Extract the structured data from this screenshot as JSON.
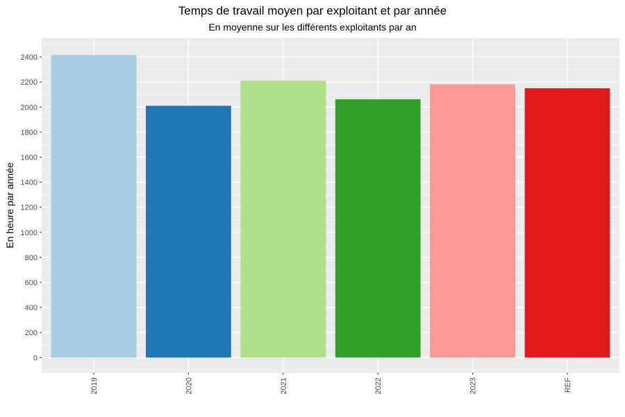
{
  "chart_data": {
    "type": "bar",
    "title": "Temps de travail moyen par exploitant et par année",
    "subtitle": "En moyenne sur les différents exploitants par an",
    "xlabel": "",
    "ylabel": "En heure par année",
    "categories": [
      "2019",
      "2020",
      "2021",
      "2022",
      "2023",
      "REF"
    ],
    "values": [
      2415,
      2010,
      2210,
      2062,
      2182,
      2150
    ],
    "colors": [
      "#a6cee3",
      "#1f78b4",
      "#b2df8a",
      "#33a02c",
      "#fb9a99",
      "#e31a1c"
    ],
    "ylim": [
      -120,
      2550
    ],
    "yticks": [
      0,
      200,
      400,
      600,
      800,
      1000,
      1200,
      1400,
      1600,
      1800,
      2000,
      2200,
      2400
    ],
    "grid": true,
    "panel_background": "#ebebeb",
    "legend": "none"
  }
}
